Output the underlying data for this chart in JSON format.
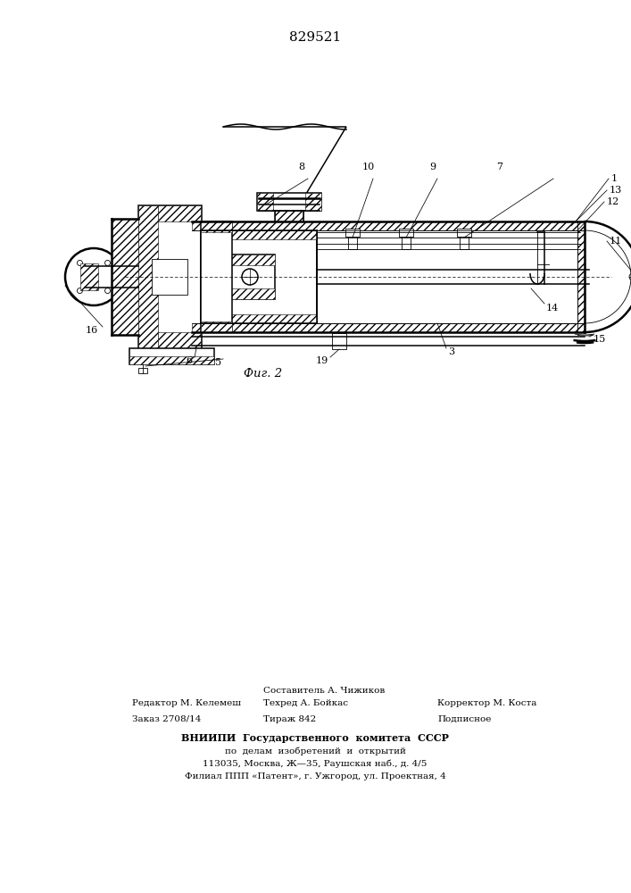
{
  "patent_number": "829521",
  "fig_label": "Фиг. 2",
  "bg_color": "#ffffff",
  "line_color": "#000000",
  "footer_left_line1": "Редактор М. Келемеш",
  "footer_left_line2": "Заказ 2708/14",
  "footer_center_line1": "Составитель А. Чижиков",
  "footer_center_line2": "Техред А. Бойкас",
  "footer_center_line3": "Тираж 842",
  "footer_right_line1": "Корректор М. Коста",
  "footer_right_line2": "Подписное",
  "footer_vniip1": "ВНИИПИ  Государственного  комитета  СССР",
  "footer_vniip2": "по  делам  изобретений  и  открытий",
  "footer_vniip3": "113035, Москва, Ж—35, Раушская наб., д. 4/5",
  "footer_vniip4": "Филиал ППП «Патент», г. Ужгород, ул. Проектная, 4"
}
